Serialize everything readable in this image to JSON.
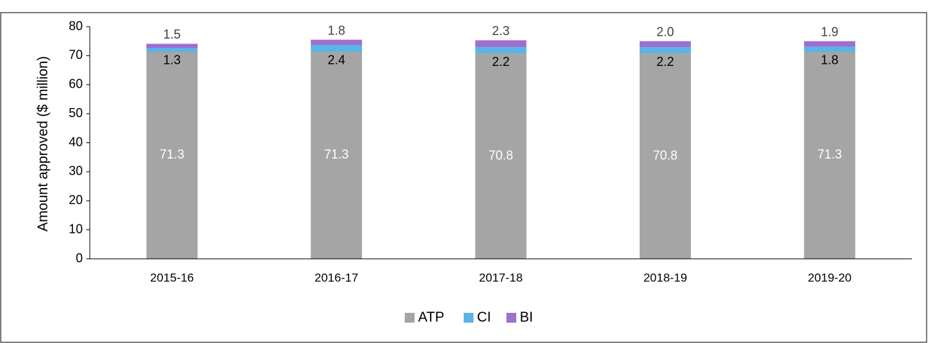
{
  "chart_data": {
    "type": "bar",
    "stacked": true,
    "y_label": "Amount approved ($ million)",
    "categories": [
      "2015-16",
      "2016-17",
      "2017-18",
      "2018-19",
      "2019-20"
    ],
    "series": [
      {
        "name": "ATP",
        "color": "#a5a5a5",
        "values": [
          71.3,
          71.3,
          70.8,
          70.8,
          71.3
        ]
      },
      {
        "name": "CI",
        "color": "#5bb4e8",
        "values": [
          1.3,
          2.4,
          2.2,
          2.2,
          1.8
        ]
      },
      {
        "name": "BI",
        "color": "#9e6fcf",
        "values": [
          1.5,
          1.8,
          2.3,
          2.0,
          1.9
        ],
        "value_labels": [
          "1.5",
          "1.8",
          "2.3",
          "2.0",
          "1.9"
        ]
      }
    ],
    "ylim": [
      0,
      80
    ],
    "yticks": [
      0,
      10,
      20,
      30,
      40,
      50,
      60,
      70,
      80
    ],
    "grid": false,
    "legend": "bottom"
  }
}
